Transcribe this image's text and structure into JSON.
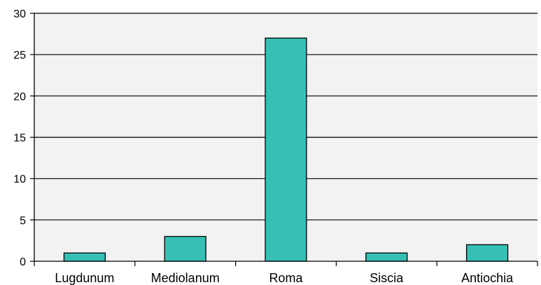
{
  "chart_data": {
    "type": "bar",
    "categories": [
      "Lugdunum",
      "Mediolanum",
      "Roma",
      "Siscia",
      "Antiochia"
    ],
    "values": [
      1,
      3,
      27,
      1,
      2
    ],
    "title": "",
    "xlabel": "",
    "ylabel": "",
    "ylim": [
      0,
      30
    ],
    "yticks": [
      0,
      5,
      10,
      15,
      20,
      25,
      30
    ],
    "grid": true,
    "legend": "none",
    "colors": {
      "bar_fill": "#36c0b5",
      "bar_stroke": "#000000",
      "plot_background": "#f2f2f2",
      "grid": "#000000"
    }
  }
}
